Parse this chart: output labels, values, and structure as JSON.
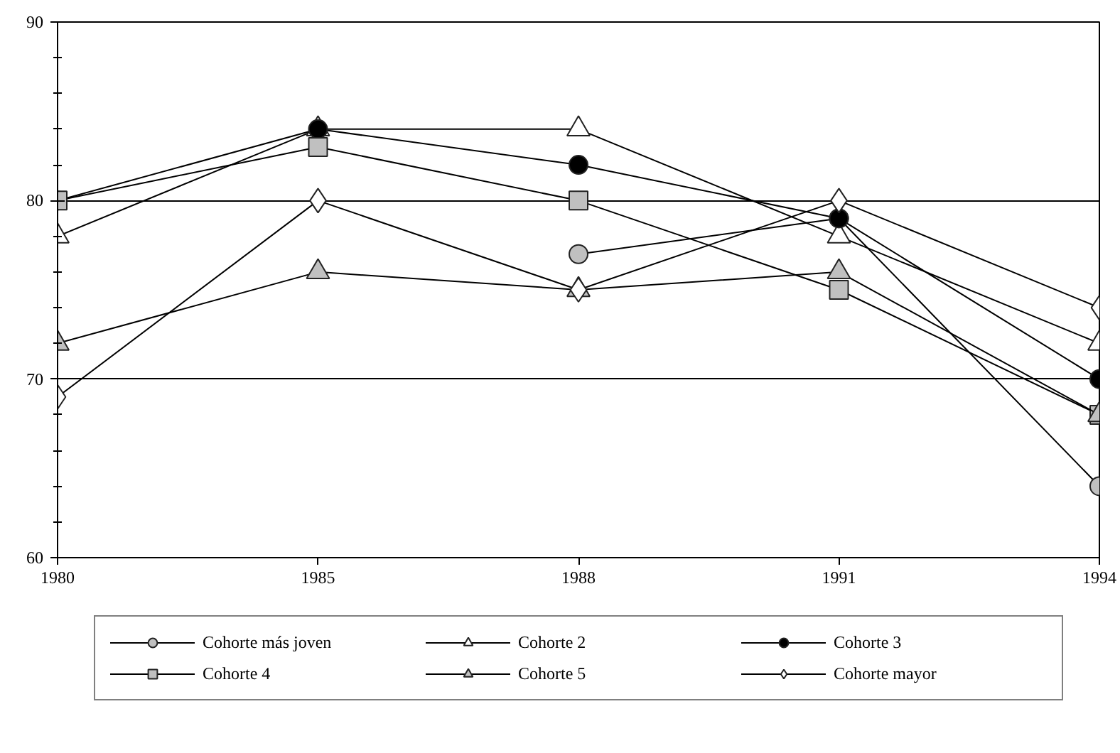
{
  "chart_data": {
    "type": "line",
    "categories": [
      "1980",
      "1985",
      "1988",
      "1991",
      "1994"
    ],
    "ylim": [
      60,
      90
    ],
    "yticks": [
      60,
      70,
      80,
      90
    ],
    "grid": "y",
    "legend": "bottom",
    "line_style": "solid",
    "series": [
      {
        "name": "Cohorte más joven",
        "color": "#c0c0c0",
        "marker": "circle",
        "values": [
          null,
          null,
          77,
          79,
          64
        ]
      },
      {
        "name": "Cohorte 2",
        "color": "#ffffff",
        "marker": "triangle",
        "values": [
          78,
          84,
          84,
          78,
          72
        ]
      },
      {
        "name": "Cohorte 3",
        "color": "#000000",
        "marker": "circle",
        "values": [
          80,
          84,
          82,
          79,
          70
        ]
      },
      {
        "name": "Cohorte 4",
        "color": "#c0c0c0",
        "marker": "square",
        "values": [
          80,
          83,
          80,
          75,
          68
        ]
      },
      {
        "name": "Cohorte 5",
        "color": "#c0c0c0",
        "marker": "triangle",
        "values": [
          72,
          76,
          75,
          76,
          68
        ]
      },
      {
        "name": "Cohorte mayor",
        "color": "#ffffff",
        "marker": "diamond",
        "values": [
          69,
          80,
          75,
          80,
          74
        ]
      }
    ]
  }
}
